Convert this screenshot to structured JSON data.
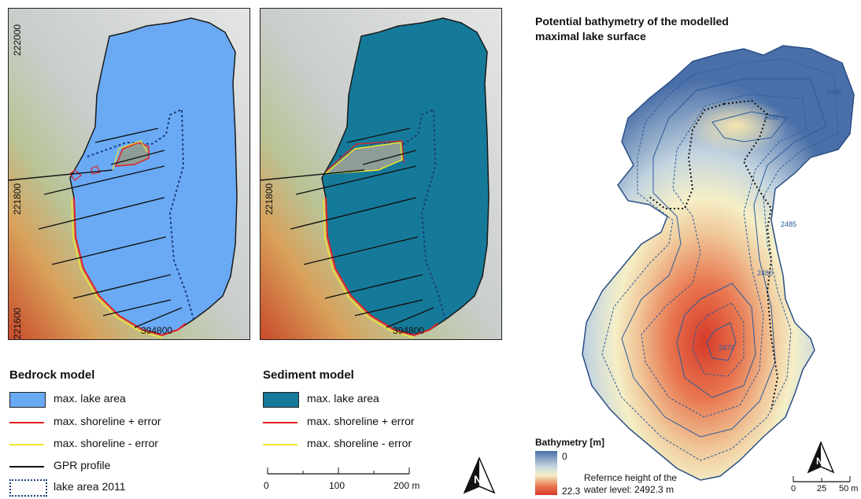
{
  "panels": {
    "bedrock": {
      "axis_labels": {
        "y_top": "222000",
        "y_mid": "221800",
        "y_bottom": "221600",
        "x": "394800"
      },
      "legend_title": "Bedrock model",
      "legend": [
        {
          "label": "max. lake area",
          "kind": "fill",
          "color": "#6aaaf5"
        },
        {
          "label": "max. shoreline + error",
          "kind": "line",
          "color": "#e32020"
        },
        {
          "label": "max. shoreline - error",
          "kind": "line",
          "color": "#f0e62a"
        },
        {
          "label": "GPR profile",
          "kind": "line",
          "color": "#111111"
        },
        {
          "label": "lake area 2011",
          "kind": "dashed-box",
          "color": "#1c3f78"
        }
      ]
    },
    "sediment": {
      "axis_labels": {
        "y_mid": "221800",
        "x": "394800"
      },
      "legend_title": "Sediment model",
      "legend": [
        {
          "label": "max. lake area",
          "kind": "fill",
          "color": "#157a9a"
        },
        {
          "label": "max. shoreline + error",
          "kind": "line",
          "color": "#e32020"
        },
        {
          "label": "max. shoreline - error",
          "kind": "line",
          "color": "#f0e62a"
        }
      ]
    },
    "bathymetry": {
      "title_line1": "Potential bathymetry of the modelled",
      "title_line2": "maximal lake surface",
      "contour_labels": [
        "2490",
        "2488",
        "2485",
        "2480",
        "2479"
      ],
      "legend_title": "Bathymetry [m]",
      "legend_max": "0",
      "legend_min": "22.3",
      "reference_line1": "Refernce height of the",
      "reference_line2": "water level: 2492.3 m"
    }
  },
  "scalebar_main": {
    "ticks": [
      "0",
      "100",
      "200 m"
    ]
  },
  "scalebar_small": {
    "ticks": [
      "0",
      "25",
      "50 m"
    ]
  },
  "north_arrow_label": "N"
}
